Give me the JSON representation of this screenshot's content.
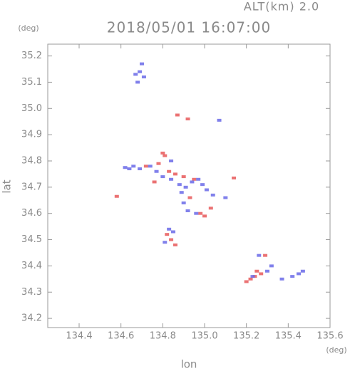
{
  "chart_data": {
    "type": "scatter",
    "title": "2018/05/01 16:07:00",
    "subtitle": "ALT(km) 2.0",
    "x_label": "lon",
    "y_label": "lat",
    "x_unit": "(deg)",
    "y_unit": "(deg)",
    "xlim": [
      134.25,
      135.6
    ],
    "ylim": [
      34.165,
      35.245
    ],
    "xticks": [
      134.4,
      134.6,
      134.8,
      {
        "value": 135,
        "label": "135.0"
      },
      135.2,
      135.4,
      135.6
    ],
    "yticks": [
      34.2,
      34.3,
      34.4,
      34.5,
      34.6,
      34.7,
      34.8,
      34.9,
      {
        "value": 35,
        "label": "35.0"
      },
      35.1,
      35.2
    ],
    "series": [
      {
        "color": "#e8595a",
        "x": [
          134.87,
          134.92,
          134.58,
          135.14,
          134.8,
          134.81,
          134.78,
          134.83,
          134.86,
          134.9,
          134.95,
          134.98,
          135.0,
          135.03,
          134.84,
          134.86,
          134.82,
          135.25,
          135.27,
          135.24,
          135.22,
          135.2,
          135.29,
          134.72,
          134.76,
          134.93
        ],
        "y": [
          34.975,
          34.96,
          34.665,
          34.735,
          34.83,
          34.82,
          34.79,
          34.76,
          34.75,
          34.74,
          34.73,
          34.6,
          34.59,
          34.62,
          34.5,
          34.48,
          34.52,
          34.38,
          34.37,
          34.36,
          34.35,
          34.34,
          34.44,
          34.78,
          34.72,
          34.66
        ]
      },
      {
        "color": "#6a6ae8",
        "x": [
          134.67,
          134.69,
          134.71,
          134.7,
          134.68,
          135.07,
          134.62,
          134.64,
          134.66,
          134.69,
          134.74,
          134.77,
          134.8,
          134.84,
          134.88,
          134.91,
          134.94,
          134.97,
          135.01,
          135.04,
          134.9,
          134.92,
          134.96,
          135.1,
          134.83,
          134.85,
          134.81,
          135.26,
          135.3,
          135.32,
          135.23,
          135.37,
          135.42,
          135.45,
          135.47,
          134.84,
          134.89,
          134.99
        ],
        "y": [
          35.13,
          35.14,
          35.12,
          35.17,
          35.1,
          34.955,
          34.775,
          34.77,
          34.78,
          34.77,
          34.78,
          34.76,
          34.74,
          34.73,
          34.71,
          34.7,
          34.72,
          34.73,
          34.69,
          34.67,
          34.64,
          34.61,
          34.6,
          34.66,
          34.54,
          34.53,
          34.49,
          34.44,
          34.38,
          34.4,
          34.36,
          34.35,
          34.36,
          34.37,
          34.38,
          34.8,
          34.68,
          34.71
        ]
      }
    ]
  }
}
